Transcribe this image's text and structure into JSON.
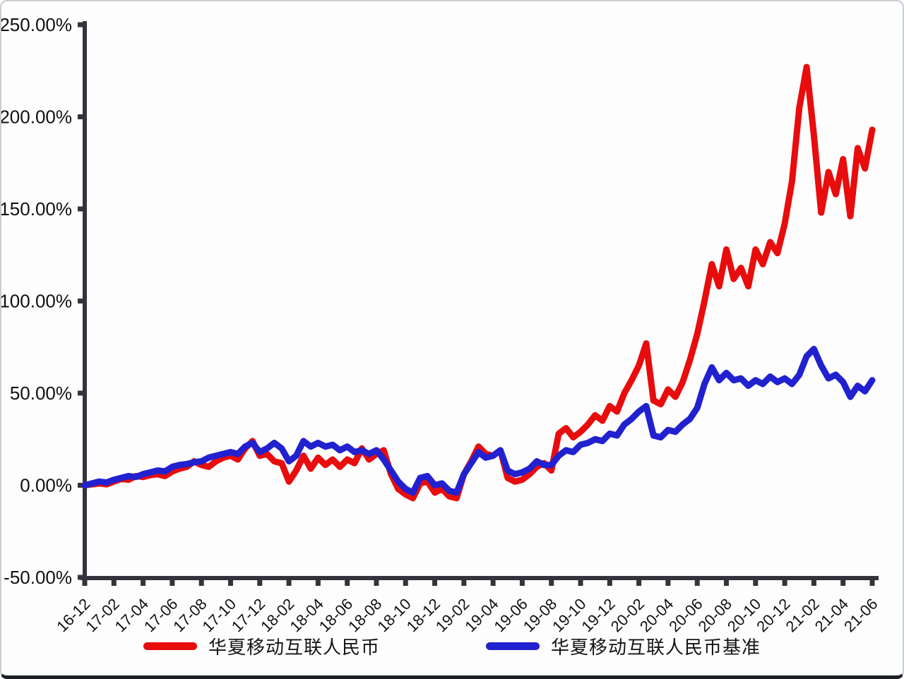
{
  "chart_data": {
    "type": "line",
    "title": "",
    "y_axis_format": "percent",
    "ylim_pct": [
      -50,
      250
    ],
    "grid": false,
    "plot_bg": "#fdfdfe",
    "axis_color": "#33333b",
    "text_color": "#111111",
    "legend_position": "bottom-center",
    "y_ticks": [
      {
        "pct": 250,
        "label": "250.00%"
      },
      {
        "pct": 200,
        "label": "200.00%"
      },
      {
        "pct": 150,
        "label": "150.00%"
      },
      {
        "pct": 100,
        "label": "100.00%"
      },
      {
        "pct": 50,
        "label": "50.00%"
      },
      {
        "pct": 0,
        "label": "0.00%"
      },
      {
        "pct": -50,
        "label": "-50.00%"
      }
    ],
    "x_ticks": [
      {
        "month_offset": 0,
        "label": "16-12"
      },
      {
        "month_offset": 2,
        "label": "17-02"
      },
      {
        "month_offset": 4,
        "label": "17-04"
      },
      {
        "month_offset": 6,
        "label": "17-06"
      },
      {
        "month_offset": 8,
        "label": "17-08"
      },
      {
        "month_offset": 10,
        "label": "17-10"
      },
      {
        "month_offset": 12,
        "label": "17-12"
      },
      {
        "month_offset": 14,
        "label": "18-02"
      },
      {
        "month_offset": 16,
        "label": "18-04"
      },
      {
        "month_offset": 18,
        "label": "18-06"
      },
      {
        "month_offset": 20,
        "label": "18-08"
      },
      {
        "month_offset": 22,
        "label": "18-10"
      },
      {
        "month_offset": 24,
        "label": "18-12"
      },
      {
        "month_offset": 26,
        "label": "19-02"
      },
      {
        "month_offset": 28,
        "label": "19-04"
      },
      {
        "month_offset": 30,
        "label": "19-06"
      },
      {
        "month_offset": 32,
        "label": "19-08"
      },
      {
        "month_offset": 34,
        "label": "19-10"
      },
      {
        "month_offset": 36,
        "label": "19-12"
      },
      {
        "month_offset": 38,
        "label": "20-02"
      },
      {
        "month_offset": 40,
        "label": "20-04"
      },
      {
        "month_offset": 42,
        "label": "20-06"
      },
      {
        "month_offset": 44,
        "label": "20-08"
      },
      {
        "month_offset": 46,
        "label": "20-10"
      },
      {
        "month_offset": 48,
        "label": "20-12"
      },
      {
        "month_offset": 50,
        "label": "21-02"
      },
      {
        "month_offset": 52,
        "label": "21-04"
      },
      {
        "month_offset": 54,
        "label": "21-06"
      }
    ],
    "x_start_label": "16-12",
    "x_end_label": "21-06",
    "x_step_months": 0.5,
    "series": [
      {
        "name": "华夏移动互联人民币",
        "color": "#e80c0c",
        "values_pct": [
          0,
          0.5,
          1,
          0.5,
          2,
          3.5,
          3,
          5,
          4.5,
          5.5,
          6,
          5,
          7.5,
          9,
          10,
          13,
          11,
          10,
          13,
          15,
          16,
          14,
          20,
          24,
          16,
          17,
          13,
          12,
          2,
          8,
          16,
          9,
          15,
          11,
          14,
          10,
          14,
          12,
          20,
          14,
          17,
          19,
          6,
          -2,
          -5,
          -7,
          1,
          2,
          -4,
          -2,
          -6,
          -7,
          6,
          13,
          21,
          17,
          16,
          19,
          4,
          2,
          3,
          6,
          10,
          12,
          8,
          28,
          31,
          26,
          29,
          33,
          38,
          35,
          43,
          40,
          50,
          57,
          65,
          77,
          46,
          44,
          52,
          48,
          56,
          68,
          82,
          100,
          120,
          108,
          128,
          112,
          118,
          108,
          128,
          120,
          132,
          126,
          142,
          165,
          205,
          227,
          190,
          148,
          170,
          158,
          177,
          146,
          183,
          172,
          193
        ]
      },
      {
        "name": "华夏移动互联人民币基准",
        "color": "#2121cf",
        "values_pct": [
          0,
          1,
          2,
          1.5,
          3,
          4,
          5,
          4.5,
          6,
          7,
          8,
          7.5,
          10,
          11,
          11.5,
          12.5,
          13,
          15,
          16,
          17,
          18,
          17,
          21,
          23,
          18,
          20,
          23,
          20,
          13,
          16,
          24,
          21,
          23,
          21,
          22,
          19,
          21,
          18,
          19,
          17,
          19,
          14,
          8,
          2,
          -2,
          -4,
          4,
          5,
          0,
          1,
          -3,
          -4,
          6,
          12,
          18,
          15,
          16,
          19,
          8,
          6,
          7,
          9,
          13,
          11,
          11,
          16,
          19,
          18,
          22,
          23,
          25,
          24,
          28,
          27,
          33,
          36,
          40,
          43,
          27,
          26,
          30,
          29,
          33,
          36,
          42,
          55,
          64,
          57,
          61,
          57,
          58,
          54,
          57,
          55,
          59,
          56,
          58,
          55,
          60,
          70,
          74,
          65,
          58,
          60,
          56,
          48,
          54,
          51,
          57
        ]
      }
    ]
  }
}
